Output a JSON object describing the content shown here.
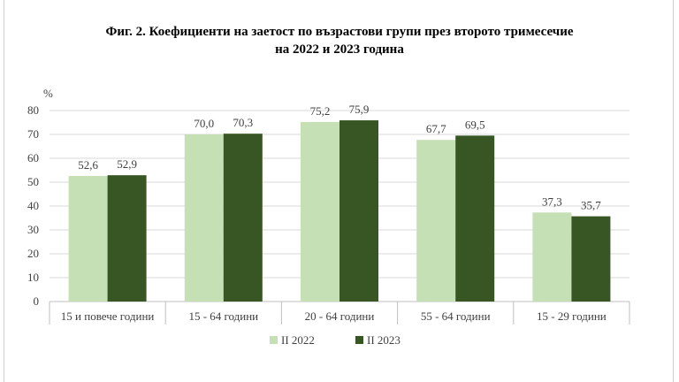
{
  "title_line1": "Фиг. 2. Коефициенти на заетост по възрастови групи през второто тримесечие",
  "title_line2": "на 2022 и 2023 година",
  "chart_data": {
    "type": "bar",
    "ylabel": "%",
    "ylim": [
      0,
      80
    ],
    "yticks": [
      0,
      10,
      20,
      30,
      40,
      50,
      60,
      70,
      80
    ],
    "ytick_labels": [
      "0",
      "10",
      "20",
      "30",
      "40",
      "50",
      "60",
      "70",
      "80"
    ],
    "grid": true,
    "legend_position": "bottom",
    "categories": [
      "15 и повече години",
      "15 - 64 години",
      "20 - 64 години",
      "55 - 64 години",
      "15 - 29 години"
    ],
    "series": [
      {
        "name": "II 2022",
        "color": "#c5e0b4",
        "values": [
          52.6,
          70.0,
          75.2,
          67.7,
          37.3
        ],
        "labels": [
          "52,6",
          "70,0",
          "75,2",
          "67,7",
          "37,3"
        ]
      },
      {
        "name": "II 2023",
        "color": "#375623",
        "values": [
          52.9,
          70.3,
          75.9,
          69.5,
          35.7
        ],
        "labels": [
          "52,9",
          "70,3",
          "75,9",
          "69,5",
          "35,7"
        ]
      }
    ]
  }
}
